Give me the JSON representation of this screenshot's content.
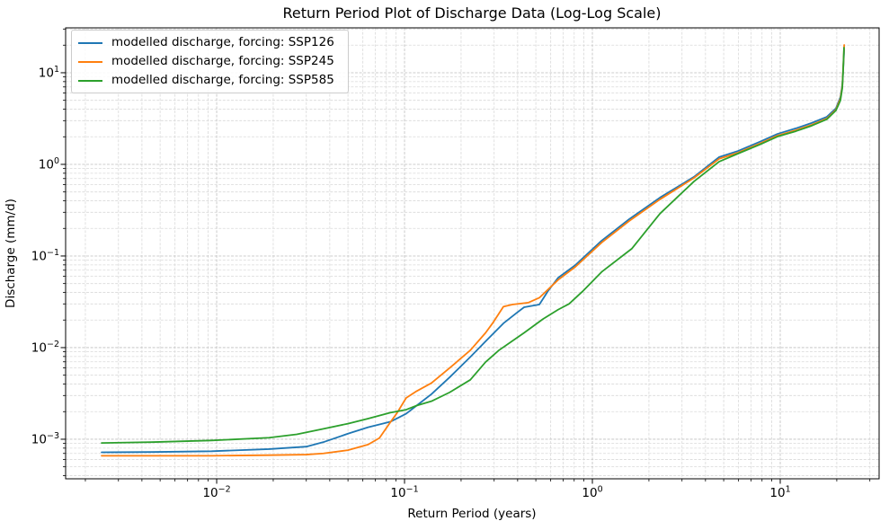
{
  "chart_data": {
    "type": "line",
    "title": "Return Period Plot of Discharge Data (Log-Log Scale)",
    "xlabel": "Return Period (years)",
    "ylabel": "Discharge (mm/d)",
    "x_scale": "log",
    "y_scale": "log",
    "xlim": [
      0.00157,
      33.6
    ],
    "ylim": [
      0.00037,
      30.9
    ],
    "x_major_tick_exponents": [
      -2,
      -1,
      0,
      1
    ],
    "y_major_tick_exponents": [
      -3,
      -2,
      -1,
      0,
      1
    ],
    "grid": "major and minor, dashed, light gray",
    "legend_position": "upper left",
    "axis_color": "#000000",
    "major_grid_color": "#bfbfbf",
    "minor_grid_color": "#d9d9d9",
    "series": [
      {
        "name": "modelled discharge, forcing: SSP126",
        "color": "#1f77b4",
        "points": [
          [
            0.00244,
            0.00072
          ],
          [
            0.0045,
            0.000725
          ],
          [
            0.0094,
            0.00074
          ],
          [
            0.019,
            0.00078
          ],
          [
            0.03,
            0.00083
          ],
          [
            0.037,
            0.00093
          ],
          [
            0.05,
            0.00115
          ],
          [
            0.064,
            0.00135
          ],
          [
            0.084,
            0.00155
          ],
          [
            0.102,
            0.0019
          ],
          [
            0.116,
            0.00233
          ],
          [
            0.139,
            0.0031
          ],
          [
            0.174,
            0.00475
          ],
          [
            0.224,
            0.0079
          ],
          [
            0.27,
            0.0117
          ],
          [
            0.336,
            0.0184
          ],
          [
            0.396,
            0.024
          ],
          [
            0.433,
            0.0276
          ],
          [
            0.522,
            0.0295
          ],
          [
            0.583,
            0.042
          ],
          [
            0.658,
            0.058
          ],
          [
            0.811,
            0.0795
          ],
          [
            1.12,
            0.147
          ],
          [
            1.57,
            0.252
          ],
          [
            2.29,
            0.434
          ],
          [
            3.47,
            0.73
          ],
          [
            4.73,
            1.2
          ],
          [
            5.96,
            1.4
          ],
          [
            7.76,
            1.76
          ],
          [
            9.67,
            2.15
          ],
          [
            12.1,
            2.47
          ],
          [
            14.7,
            2.83
          ],
          [
            17.7,
            3.3
          ],
          [
            19.8,
            4.1
          ],
          [
            20.9,
            5.4
          ],
          [
            21.4,
            7.3
          ],
          [
            21.6,
            10.2
          ],
          [
            21.9,
            18.0
          ]
        ]
      },
      {
        "name": "modelled discharge, forcing: SSP245",
        "color": "#ff7f0e",
        "points": [
          [
            0.00244,
            0.00066
          ],
          [
            0.0094,
            0.00066
          ],
          [
            0.019,
            0.00067
          ],
          [
            0.03,
            0.00068
          ],
          [
            0.037,
            0.0007
          ],
          [
            0.05,
            0.00076
          ],
          [
            0.064,
            0.000875
          ],
          [
            0.0735,
            0.00103
          ],
          [
            0.084,
            0.00153
          ],
          [
            0.091,
            0.00192
          ],
          [
            0.102,
            0.00282
          ],
          [
            0.116,
            0.00335
          ],
          [
            0.139,
            0.0041
          ],
          [
            0.174,
            0.006
          ],
          [
            0.224,
            0.00935
          ],
          [
            0.27,
            0.0145
          ],
          [
            0.294,
            0.0184
          ],
          [
            0.336,
            0.028
          ],
          [
            0.375,
            0.0295
          ],
          [
            0.457,
            0.031
          ],
          [
            0.522,
            0.035
          ],
          [
            0.658,
            0.055
          ],
          [
            0.811,
            0.076
          ],
          [
            1.12,
            0.14
          ],
          [
            1.57,
            0.241
          ],
          [
            2.29,
            0.415
          ],
          [
            3.47,
            0.71
          ],
          [
            4.73,
            1.15
          ],
          [
            5.96,
            1.34
          ],
          [
            7.76,
            1.68
          ],
          [
            9.67,
            2.06
          ],
          [
            12.1,
            2.36
          ],
          [
            14.7,
            2.7
          ],
          [
            17.7,
            3.16
          ],
          [
            19.8,
            3.96
          ],
          [
            20.9,
            5.2
          ],
          [
            21.4,
            7.1
          ],
          [
            21.6,
            10.7
          ],
          [
            21.9,
            20.1
          ]
        ]
      },
      {
        "name": "modelled discharge, forcing: SSP585",
        "color": "#2ca02c",
        "points": [
          [
            0.00244,
            0.00091
          ],
          [
            0.0045,
            0.00093
          ],
          [
            0.0094,
            0.00097
          ],
          [
            0.019,
            0.00104
          ],
          [
            0.0267,
            0.00113
          ],
          [
            0.037,
            0.0013
          ],
          [
            0.05,
            0.00148
          ],
          [
            0.064,
            0.00168
          ],
          [
            0.084,
            0.00195
          ],
          [
            0.102,
            0.0021
          ],
          [
            0.116,
            0.00233
          ],
          [
            0.139,
            0.0026
          ],
          [
            0.174,
            0.00325
          ],
          [
            0.224,
            0.00445
          ],
          [
            0.27,
            0.00695
          ],
          [
            0.318,
            0.00935
          ],
          [
            0.433,
            0.0145
          ],
          [
            0.546,
            0.0205
          ],
          [
            0.658,
            0.026
          ],
          [
            0.751,
            0.03
          ],
          [
            0.886,
            0.041
          ],
          [
            1.12,
            0.067
          ],
          [
            1.62,
            0.12
          ],
          [
            2.29,
            0.29
          ],
          [
            3.47,
            0.65
          ],
          [
            4.73,
            1.07
          ],
          [
            5.96,
            1.31
          ],
          [
            7.76,
            1.64
          ],
          [
            9.67,
            2.01
          ],
          [
            12.1,
            2.3
          ],
          [
            14.7,
            2.64
          ],
          [
            17.7,
            3.1
          ],
          [
            19.8,
            3.88
          ],
          [
            20.9,
            4.97
          ],
          [
            21.4,
            6.8
          ],
          [
            21.6,
            10.2
          ],
          [
            21.85,
            18.8
          ]
        ]
      }
    ]
  }
}
